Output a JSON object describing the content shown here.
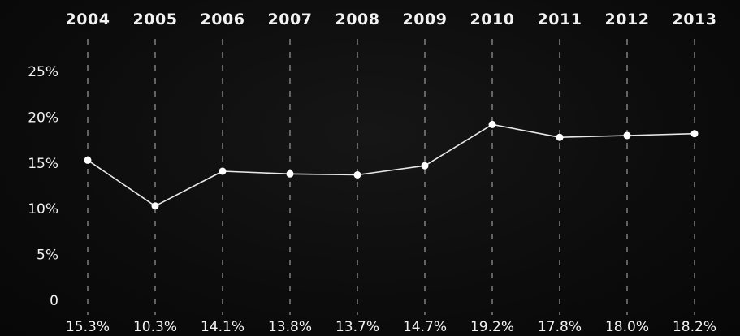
{
  "chart_data": {
    "type": "line",
    "categories": [
      "2004",
      "2005",
      "2006",
      "2007",
      "2008",
      "2009",
      "2010",
      "2011",
      "2012",
      "2013"
    ],
    "series": [
      {
        "values": [
          15.3,
          10.3,
          14.1,
          13.8,
          13.7,
          14.7,
          19.2,
          17.8,
          18.0,
          18.2
        ]
      }
    ],
    "value_labels": [
      "15.3%",
      "10.3%",
      "14.1%",
      "13.8%",
      "13.7%",
      "14.7%",
      "19.2%",
      "17.8%",
      "18.0%",
      "18.2%"
    ],
    "y_ticks": [
      {
        "value": 0,
        "label": "0"
      },
      {
        "value": 5,
        "label": "5%"
      },
      {
        "value": 10,
        "label": "10%"
      },
      {
        "value": 15,
        "label": "15%"
      },
      {
        "value": 20,
        "label": "20%"
      },
      {
        "value": 25,
        "label": "25%"
      }
    ],
    "ylim": [
      0,
      25
    ],
    "grid": "vertical-dashed",
    "title": "",
    "xlabel": "",
    "ylabel": "",
    "colors": {
      "background": "#0c0c0c",
      "line": "#e8e8e8",
      "text": "#f2f2f2"
    }
  }
}
